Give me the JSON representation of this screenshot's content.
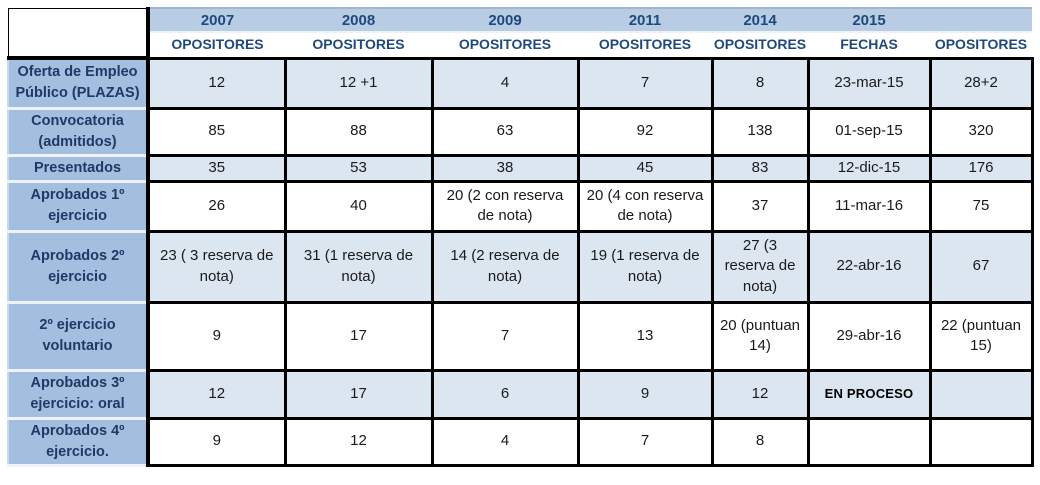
{
  "table": {
    "years": [
      "2007",
      "2008",
      "2009",
      "2011",
      "2014",
      "2015",
      ""
    ],
    "col_headers": [
      "OPOSITORES",
      "OPOSITORES",
      "OPOSITORES",
      "OPOSITORES",
      "OPOSITORES",
      "FECHAS",
      "OPOSITORES"
    ],
    "rows": [
      {
        "label": "Oferta de Empleo Público (PLAZAS)",
        "cells": [
          "12",
          "12 +1",
          "4",
          "7",
          "8",
          "23-mar-15",
          "28+2"
        ]
      },
      {
        "label": "Convocatoria (admitidos)",
        "cells": [
          "85",
          "88",
          "63",
          "92",
          "138",
          "01-sep-15",
          "320"
        ]
      },
      {
        "label": "Presentados",
        "cells": [
          "35",
          "53",
          "38",
          "45",
          "83",
          "12-dic-15",
          "176"
        ]
      },
      {
        "label": "Aprobados 1º ejercicio",
        "cells": [
          "26",
          "40",
          "20 (2 con reserva de nota)",
          "20 (4 con reserva de nota)",
          "37",
          "11-mar-16",
          "75"
        ]
      },
      {
        "label": "Aprobados 2º ejercicio",
        "cells": [
          "23 ( 3 reserva de nota)",
          "31 (1 reserva de nota)",
          "14 (2 reserva de nota)",
          "19 (1 reserva de nota)",
          "27 (3 reserva de nota)",
          "22-abr-16",
          "67"
        ]
      },
      {
        "label": "2º ejercicio voluntario",
        "cells": [
          "9",
          "17",
          "7",
          "13",
          "20 (puntuan 14)",
          "29-abr-16",
          "22 (puntuan 15)"
        ]
      },
      {
        "label": "Aprobados 3º ejercicio: oral",
        "cells": [
          "12",
          "17",
          "6",
          "9",
          "12",
          "EN PROCESO",
          ""
        ]
      },
      {
        "label": "Aprobados 4º ejercicio.",
        "cells": [
          "9",
          "12",
          "4",
          "7",
          "8",
          "",
          ""
        ]
      }
    ]
  },
  "colors": {
    "band": "#b8cce4",
    "header_text": "#1f497d",
    "label_bg": "#a3bede",
    "label_text": "#1d3a66",
    "shaded_row": "#dce6f1",
    "grid": "#000000"
  }
}
